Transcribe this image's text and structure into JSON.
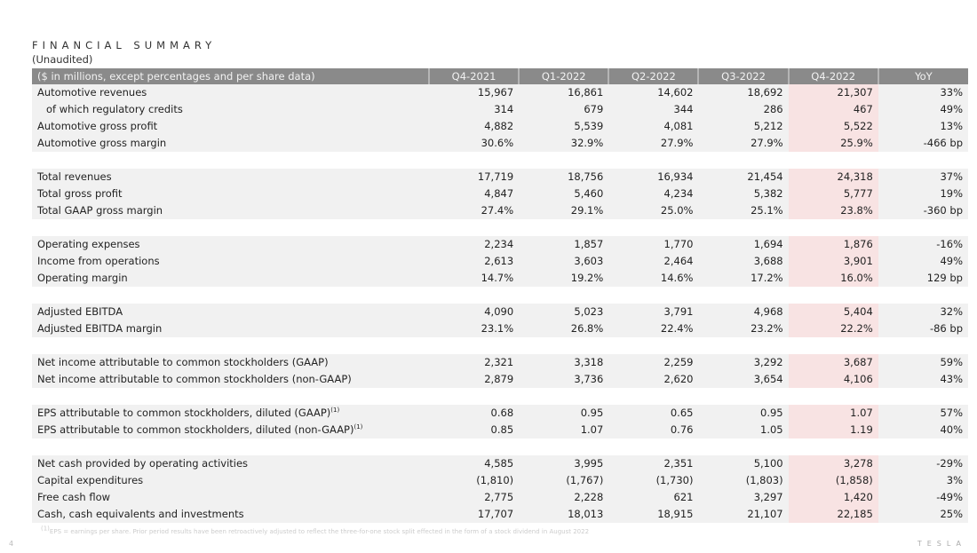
{
  "title": "FINANCIAL SUMMARY",
  "subtitle": "(Unaudited)",
  "headers": [
    "($ in millions, except percentages and per share data)",
    "Q4-2021",
    "Q1-2022",
    "Q2-2022",
    "Q3-2022",
    "Q4-2022",
    "YoY"
  ],
  "highlight_color": "#f8e3e3",
  "groups": [
    [
      [
        "Automotive revenues",
        "15,967",
        "16,861",
        "14,602",
        "18,692",
        "21,307",
        "33%"
      ],
      [
        "of which regulatory credits",
        "314",
        "679",
        "344",
        "286",
        "467",
        "49%"
      ],
      [
        "Automotive gross profit",
        "4,882",
        "5,539",
        "4,081",
        "5,212",
        "5,522",
        "13%"
      ],
      [
        "Automotive gross margin",
        "30.6%",
        "32.9%",
        "27.9%",
        "27.9%",
        "25.9%",
        "-466 bp"
      ]
    ],
    [
      [
        "Total revenues",
        "17,719",
        "18,756",
        "16,934",
        "21,454",
        "24,318",
        "37%"
      ],
      [
        "Total gross profit",
        "4,847",
        "5,460",
        "4,234",
        "5,382",
        "5,777",
        "19%"
      ],
      [
        "Total GAAP gross margin",
        "27.4%",
        "29.1%",
        "25.0%",
        "25.1%",
        "23.8%",
        "-360 bp"
      ]
    ],
    [
      [
        "Operating expenses",
        "2,234",
        "1,857",
        "1,770",
        "1,694",
        "1,876",
        "-16%"
      ],
      [
        "Income from operations",
        "2,613",
        "3,603",
        "2,464",
        "3,688",
        "3,901",
        "49%"
      ],
      [
        "Operating margin",
        "14.7%",
        "19.2%",
        "14.6%",
        "17.2%",
        "16.0%",
        "129 bp"
      ]
    ],
    [
      [
        "Adjusted EBITDA",
        "4,090",
        "5,023",
        "3,791",
        "4,968",
        "5,404",
        "32%"
      ],
      [
        "Adjusted EBITDA margin",
        "23.1%",
        "26.8%",
        "22.4%",
        "23.2%",
        "22.2%",
        "-86 bp"
      ]
    ],
    [
      [
        "Net income attributable to common stockholders (GAAP)",
        "2,321",
        "3,318",
        "2,259",
        "3,292",
        "3,687",
        "59%"
      ],
      [
        "Net income attributable to common stockholders (non-GAAP)",
        "2,879",
        "3,736",
        "2,620",
        "3,654",
        "4,106",
        "43%"
      ]
    ],
    [
      [
        "EPS attributable to common stockholders, diluted (GAAP)",
        "0.68",
        "0.95",
        "0.65",
        "0.95",
        "1.07",
        "57%"
      ],
      [
        "EPS attributable to common stockholders, diluted (non-GAAP)",
        "0.85",
        "1.07",
        "0.76",
        "1.05",
        "1.19",
        "40%"
      ]
    ],
    [
      [
        "Net cash provided by operating activities",
        "4,585",
        "3,995",
        "2,351",
        "5,100",
        "3,278",
        "-29%"
      ],
      [
        "Capital expenditures",
        "(1,810)",
        "(1,767)",
        "(1,730)",
        "(1,803)",
        "(1,858)",
        "3%"
      ],
      [
        "Free cash flow",
        "2,775",
        "2,228",
        "621",
        "3,297",
        "1,420",
        "-49%"
      ],
      [
        "Cash, cash equivalents and investments",
        "17,707",
        "18,013",
        "18,915",
        "21,107",
        "22,185",
        "25%"
      ]
    ]
  ],
  "footnote_marker": "(1)",
  "footnote": "EPS = earnings per share. Prior period results have been retroactively adjusted to reflect the three-for-one stock split effected in the form of a stock dividend in August 2022",
  "page_number": "4",
  "logo": "TESLA"
}
